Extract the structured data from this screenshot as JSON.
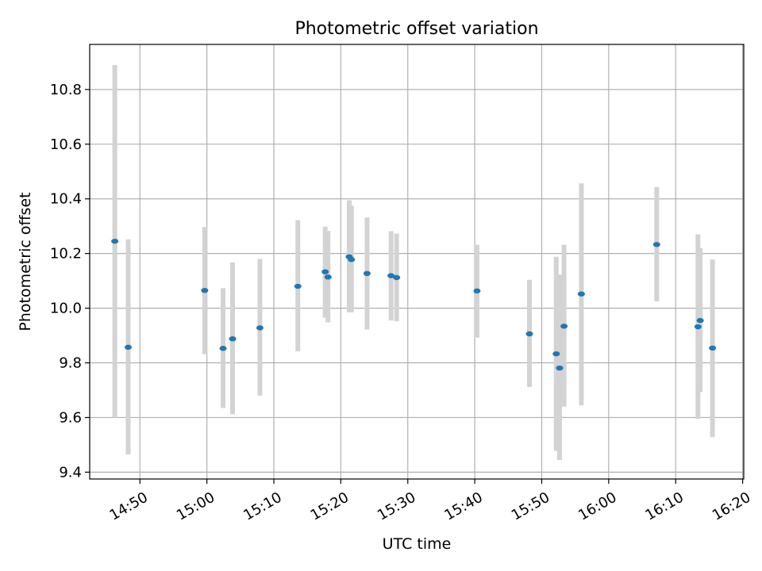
{
  "chart_data": {
    "type": "scatter",
    "title": "Photometric offset variation",
    "xlabel": "UTC time",
    "ylabel": "Photometric offset",
    "x_axis_type": "time",
    "xlim": [
      "14:42:30",
      "16:20:10"
    ],
    "ylim": [
      9.375,
      10.965
    ],
    "x_ticks": [
      "14:50",
      "15:00",
      "15:10",
      "15:20",
      "15:30",
      "15:40",
      "15:50",
      "16:00",
      "16:10",
      "16:20"
    ],
    "y_ticks": [
      9.4,
      9.6,
      9.8,
      10.0,
      10.2,
      10.4,
      10.6,
      10.8
    ],
    "grid": true,
    "legend": "none",
    "colors": {
      "marker": "#1f77b4",
      "errorbar": "#d3d3d3",
      "grid": "#b0b0b0"
    },
    "series": [
      {
        "points": [
          {
            "x": "14:46:15",
            "y": 10.245,
            "ylow": 9.6,
            "yhigh": 10.89
          },
          {
            "x": "14:48:15",
            "y": 9.857,
            "ylow": 9.465,
            "yhigh": 10.252
          },
          {
            "x": "14:59:40",
            "y": 10.065,
            "ylow": 9.832,
            "yhigh": 10.297
          },
          {
            "x": "15:02:25",
            "y": 9.853,
            "ylow": 9.635,
            "yhigh": 10.073
          },
          {
            "x": "15:03:50",
            "y": 9.888,
            "ylow": 9.612,
            "yhigh": 10.167
          },
          {
            "x": "15:07:55",
            "y": 9.928,
            "ylow": 9.68,
            "yhigh": 10.18
          },
          {
            "x": "15:13:35",
            "y": 10.08,
            "ylow": 9.842,
            "yhigh": 10.322
          },
          {
            "x": "15:17:40",
            "y": 10.133,
            "ylow": 9.965,
            "yhigh": 10.298
          },
          {
            "x": "15:18:05",
            "y": 10.114,
            "ylow": 9.948,
            "yhigh": 10.283
          },
          {
            "x": "15:21:15",
            "y": 10.188,
            "ylow": 9.985,
            "yhigh": 10.395
          },
          {
            "x": "15:21:35",
            "y": 10.178,
            "ylow": 9.985,
            "yhigh": 10.375
          },
          {
            "x": "15:23:55",
            "y": 10.127,
            "ylow": 9.922,
            "yhigh": 10.332
          },
          {
            "x": "15:27:30",
            "y": 10.119,
            "ylow": 9.955,
            "yhigh": 10.282
          },
          {
            "x": "15:28:20",
            "y": 10.112,
            "ylow": 9.952,
            "yhigh": 10.273
          },
          {
            "x": "15:40:20",
            "y": 10.063,
            "ylow": 9.892,
            "yhigh": 10.232
          },
          {
            "x": "15:48:10",
            "y": 9.906,
            "ylow": 9.712,
            "yhigh": 10.104
          },
          {
            "x": "15:52:10",
            "y": 9.833,
            "ylow": 9.478,
            "yhigh": 10.188
          },
          {
            "x": "15:52:40",
            "y": 9.781,
            "ylow": 9.445,
            "yhigh": 10.123
          },
          {
            "x": "15:53:20",
            "y": 9.934,
            "ylow": 9.64,
            "yhigh": 10.232
          },
          {
            "x": "15:55:55",
            "y": 10.052,
            "ylow": 9.645,
            "yhigh": 10.457
          },
          {
            "x": "16:07:10",
            "y": 10.233,
            "ylow": 10.025,
            "yhigh": 10.443
          },
          {
            "x": "16:13:20",
            "y": 9.932,
            "ylow": 9.595,
            "yhigh": 10.27
          },
          {
            "x": "16:13:40",
            "y": 9.955,
            "ylow": 9.693,
            "yhigh": 10.22
          },
          {
            "x": "16:15:30",
            "y": 9.854,
            "ylow": 9.528,
            "yhigh": 10.178
          }
        ]
      }
    ]
  }
}
